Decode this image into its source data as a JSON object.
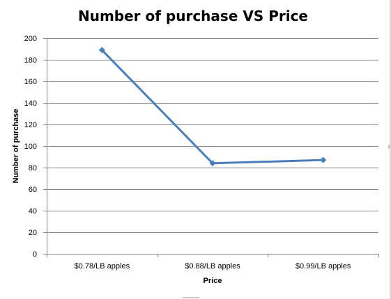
{
  "chart_data": {
    "type": "line",
    "title": "Number of purchase VS Price",
    "xlabel": "Price",
    "ylabel": "Number of purchase",
    "categories": [
      "$0.78/LB apples",
      "$0.88/LB apples",
      "$0.99/LB apples"
    ],
    "series": [
      {
        "values": [
          189,
          84,
          87
        ],
        "color": "#4a7ebb"
      }
    ],
    "ylim": [
      0,
      200
    ],
    "yticks": [
      0,
      20,
      40,
      60,
      80,
      100,
      120,
      140,
      160,
      180,
      200
    ],
    "grid": true,
    "legend": "none",
    "marker": "diamond"
  }
}
